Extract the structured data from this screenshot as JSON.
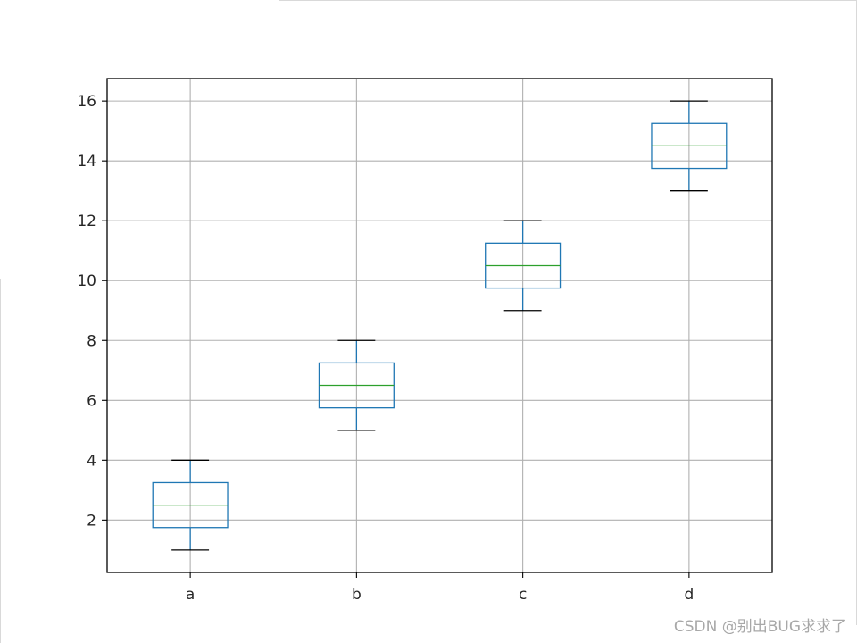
{
  "chart_data": {
    "type": "boxplot",
    "categories": [
      "a",
      "b",
      "c",
      "d"
    ],
    "boxes": [
      {
        "label": "a",
        "whisker_low": 1,
        "q1": 1.75,
        "median": 2.5,
        "q3": 3.25,
        "whisker_high": 4
      },
      {
        "label": "b",
        "whisker_low": 5,
        "q1": 5.75,
        "median": 6.5,
        "q3": 7.25,
        "whisker_high": 8
      },
      {
        "label": "c",
        "whisker_low": 9,
        "q1": 9.75,
        "median": 10.5,
        "q3": 11.25,
        "whisker_high": 12
      },
      {
        "label": "d",
        "whisker_low": 13,
        "q1": 13.75,
        "median": 14.5,
        "q3": 15.25,
        "whisker_high": 16
      }
    ],
    "yticks": [
      2,
      4,
      6,
      8,
      10,
      12,
      14,
      16
    ],
    "ylim": [
      0.25,
      16.75
    ],
    "grid": true,
    "title": "",
    "xlabel": "",
    "ylabel": "",
    "colors": {
      "box": "#1f77b4",
      "median": "#2ca02c",
      "whisker_cap": "#000000",
      "grid": "#b0b0b0",
      "axes": "#000000"
    }
  },
  "watermark": "CSDN @别出BUG求求了"
}
